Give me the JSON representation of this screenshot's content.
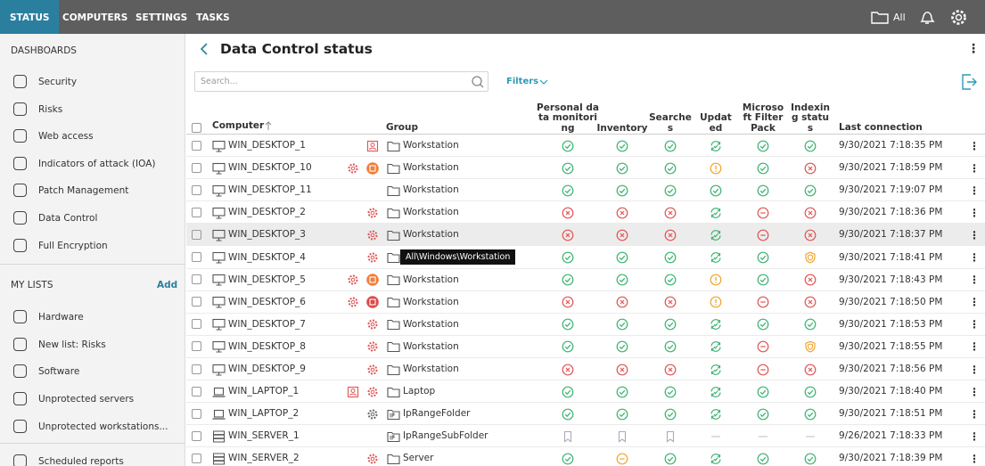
{
  "nav": {
    "tabs": [
      "STATUS",
      "COMPUTERS",
      "SETTINGS",
      "TASKS"
    ],
    "filter": "All"
  },
  "sidebar": {
    "dashboards_title": "DASHBOARDS",
    "dashboards": [
      "Security",
      "Risks",
      "Web access",
      "Indicators of attack (IOA)",
      "Patch Management",
      "Data Control",
      "Full Encryption"
    ],
    "lists_title": "MY LISTS",
    "add": "Add",
    "lists": [
      "Hardware",
      "New list: Risks",
      "Software",
      "Unprotected servers",
      "Unprotected workstations...",
      "Scheduled reports"
    ]
  },
  "main": {
    "title": "Data Control status",
    "search_placeholder": "Search...",
    "filters": "Filters",
    "columns": {
      "computer": "Computer",
      "group": "Group",
      "statuses": [
        "Personal data monitoring",
        "Inventory",
        "Searches",
        "Updated",
        "Microsoft Filter Pack",
        "Indexing status"
      ],
      "last_connection": "Last connection"
    },
    "rows": [
      {
        "computer": "WIN_DESKTOP_1",
        "device": "desktop",
        "badges": [
          "user"
        ],
        "group": "Workstation",
        "folder": "folder",
        "statuses": [
          "ok",
          "ok",
          "ok",
          "upd",
          "ok",
          "ok"
        ],
        "last_connection": "9/30/2021 7:18:35 PM"
      },
      {
        "computer": "WIN_DESKTOP_10",
        "device": "desktop",
        "badges": [
          "gear",
          "orange"
        ],
        "group": "Workstation",
        "folder": "folder",
        "statuses": [
          "ok",
          "ok",
          "ok",
          "warn",
          "ok",
          "err"
        ],
        "last_connection": "9/30/2021 7:18:59 PM"
      },
      {
        "computer": "WIN_DESKTOP_11",
        "device": "desktop",
        "badges": [],
        "group": "Workstation",
        "folder": "folder",
        "statuses": [
          "ok",
          "ok",
          "ok",
          "ok",
          "ok",
          "ok"
        ],
        "last_connection": "9/30/2021 7:19:07 PM"
      },
      {
        "computer": "WIN_DESKTOP_2",
        "device": "desktop",
        "badges": [
          "gear"
        ],
        "group": "Workstation",
        "folder": "folder",
        "statuses": [
          "err",
          "err",
          "err",
          "upd",
          "none",
          "err"
        ],
        "last_connection": "9/30/2021 7:18:36 PM"
      },
      {
        "computer": "WIN_DESKTOP_3",
        "device": "desktop",
        "badges": [
          "gear"
        ],
        "group": "Workstation",
        "folder": "folder",
        "statuses": [
          "err",
          "err",
          "err",
          "upd",
          "none",
          "err"
        ],
        "last_connection": "9/30/2021 7:18:37 PM"
      },
      {
        "computer": "WIN_DESKTOP_4",
        "device": "desktop",
        "badges": [
          "gear"
        ],
        "group_tooltip": "All\\Windows\\Workstation",
        "folder": "folder",
        "statuses": [
          "ok",
          "ok",
          "ok",
          "upd",
          "ok",
          "shield"
        ],
        "last_connection": "9/30/2021 7:18:41 PM"
      },
      {
        "computer": "WIN_DESKTOP_5",
        "device": "desktop",
        "badges": [
          "gear",
          "orange"
        ],
        "group": "Workstation",
        "folder": "folder",
        "statuses": [
          "ok",
          "ok",
          "ok",
          "warn",
          "ok",
          "err"
        ],
        "last_connection": "9/30/2021 7:18:43 PM"
      },
      {
        "computer": "WIN_DESKTOP_6",
        "device": "desktop",
        "badges": [
          "gear",
          "red"
        ],
        "group": "Workstation",
        "folder": "folder",
        "statuses": [
          "err",
          "err",
          "err",
          "warn",
          "none",
          "err"
        ],
        "last_connection": "9/30/2021 7:18:50 PM"
      },
      {
        "computer": "WIN_DESKTOP_7",
        "device": "desktop",
        "badges": [
          "gear"
        ],
        "group": "Workstation",
        "folder": "folder",
        "statuses": [
          "ok",
          "ok",
          "ok",
          "upd",
          "ok",
          "ok"
        ],
        "last_connection": "9/30/2021 7:18:53 PM"
      },
      {
        "computer": "WIN_DESKTOP_8",
        "device": "desktop",
        "badges": [
          "gear"
        ],
        "group": "Workstation",
        "folder": "folder",
        "statuses": [
          "ok",
          "ok",
          "ok",
          "upd",
          "none",
          "shield"
        ],
        "last_connection": "9/30/2021 7:18:55 PM"
      },
      {
        "computer": "WIN_DESKTOP_9",
        "device": "desktop",
        "badges": [
          "gear"
        ],
        "group": "Workstation",
        "folder": "folder",
        "statuses": [
          "err",
          "err",
          "err",
          "upd",
          "none",
          "err"
        ],
        "last_connection": "9/30/2021 7:18:56 PM"
      },
      {
        "computer": "WIN_LAPTOP_1",
        "device": "laptop",
        "badges": [
          "user",
          "gear"
        ],
        "group": "Laptop",
        "folder": "folder",
        "statuses": [
          "ok",
          "ok",
          "ok",
          "upd",
          "ok",
          "ok"
        ],
        "last_connection": "9/30/2021 7:18:40 PM"
      },
      {
        "computer": "WIN_LAPTOP_2",
        "device": "laptop",
        "badges": [
          "gear-gray"
        ],
        "group": "IpRangeFolder",
        "folder": "ip",
        "statuses": [
          "ok",
          "ok",
          "ok",
          "upd",
          "ok",
          "ok"
        ],
        "last_connection": "9/30/2021 7:18:51 PM"
      },
      {
        "computer": "WIN_SERVER_1",
        "device": "server",
        "badges": [],
        "group": "IpRangeSubFolder",
        "folder": "ip",
        "statuses": [
          "na",
          "na",
          "na",
          "dash",
          "dash",
          "dash"
        ],
        "last_connection": "9/26/2021 7:18:33 PM"
      },
      {
        "computer": "WIN_SERVER_2",
        "device": "server",
        "badges": [
          "gear"
        ],
        "group": "Server",
        "folder": "folder",
        "statuses": [
          "ok",
          "pending",
          "ok",
          "upd",
          "ok",
          "ok"
        ],
        "last_connection": "9/30/2021 7:18:39 PM"
      }
    ]
  }
}
